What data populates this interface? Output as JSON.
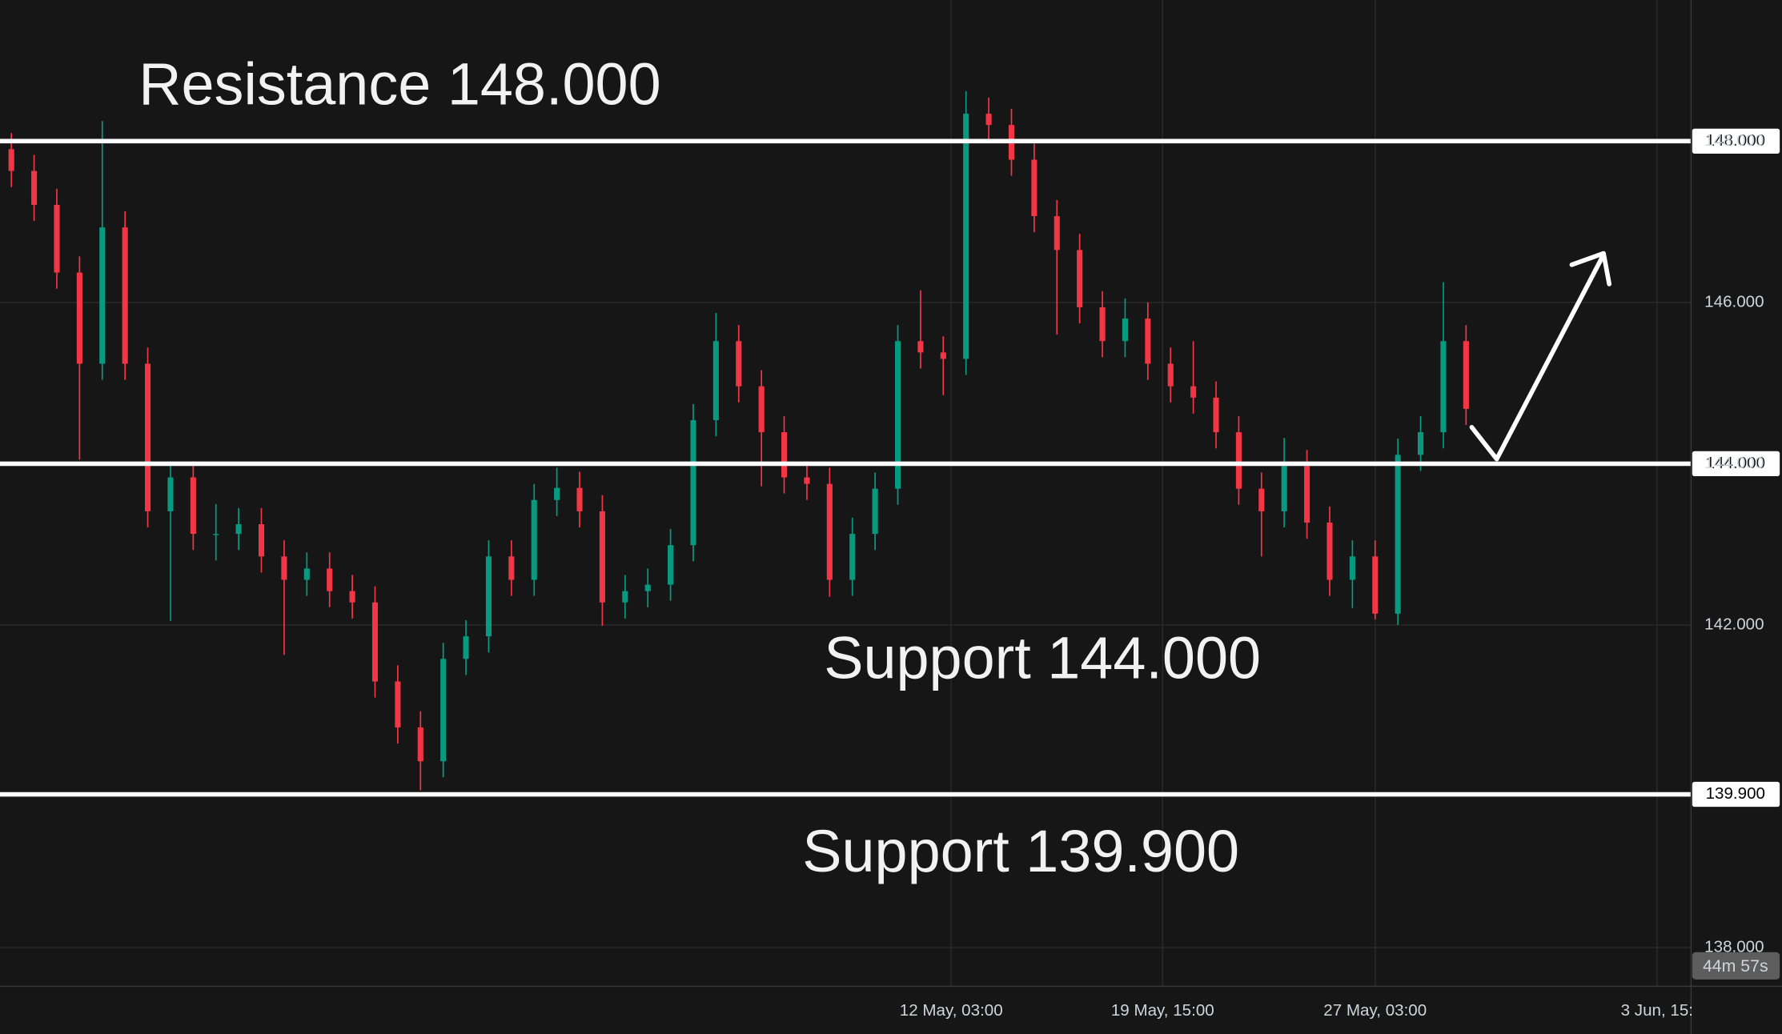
{
  "chart_data": {
    "type": "candlestick",
    "up_color": "#089981",
    "down_color": "#f23645",
    "grid": true,
    "xlim": [
      -0.5,
      73.9
    ],
    "xticks": [
      {
        "value": 41.35,
        "label": "12 May, 03:00"
      },
      {
        "value": 50.65,
        "label": "19 May, 15:00"
      },
      {
        "value": 60,
        "label": "27 May, 03:00"
      },
      {
        "value": 72.4,
        "label": "3 Jun, 15:"
      }
    ],
    "ylim": [
      137.52,
      149.75
    ],
    "yticks": [
      {
        "value": 138,
        "label": "138.000"
      },
      {
        "value": 142,
        "label": "142.000"
      },
      {
        "value": 144,
        "label": "144.000"
      },
      {
        "value": 146,
        "label": "146.000"
      },
      {
        "value": 148,
        "label": "148.000"
      }
    ],
    "series": [
      {
        "open": [
          147.9,
          147.63,
          147.21,
          146.37,
          145.24,
          146.93,
          145.24,
          143.41,
          143.83,
          143.13,
          143.13,
          143.25,
          142.85,
          142.56,
          142.7,
          142.42,
          142.28,
          141.3,
          140.73,
          140.31,
          141.58,
          141.86,
          142.85,
          142.56,
          143.55,
          143.7,
          143.41,
          142.28,
          142.42,
          142.5,
          142.99,
          144.54,
          145.52,
          144.96,
          144.39,
          143.83,
          143.75,
          142.56,
          143.13,
          143.69,
          145.52,
          145.38,
          145.3,
          148.34,
          148.2,
          147.77,
          147.07,
          146.65,
          145.94,
          145.52,
          145.8,
          145.24,
          144.96,
          144.82,
          144.39,
          143.69,
          143.41,
          143.97,
          143.27,
          142.56,
          142.85,
          142.14,
          144.11,
          144.39,
          145.52
        ],
        "high": [
          148.1,
          147.83,
          147.41,
          146.57,
          148.25,
          147.13,
          145.44,
          144.03,
          144.03,
          143.5,
          143.45,
          143.45,
          143.05,
          142.9,
          142.9,
          142.62,
          142.48,
          141.5,
          140.93,
          141.78,
          142.06,
          143.05,
          143.05,
          143.75,
          143.95,
          143.9,
          143.61,
          142.62,
          142.7,
          143.19,
          144.74,
          145.87,
          145.72,
          145.16,
          144.59,
          144.03,
          143.95,
          143.33,
          143.89,
          145.72,
          146.15,
          145.58,
          148.62,
          148.54,
          148.4,
          147.97,
          147.27,
          146.85,
          146.14,
          146.05,
          146.0,
          145.44,
          145.52,
          145.02,
          144.59,
          143.89,
          144.32,
          144.17,
          143.47,
          143.05,
          143.05,
          144.31,
          144.59,
          146.25,
          145.72
        ],
        "low": [
          147.43,
          147.01,
          146.17,
          144.05,
          145.04,
          145.04,
          143.21,
          142.05,
          142.93,
          142.8,
          142.93,
          142.65,
          141.63,
          142.36,
          142.22,
          142.08,
          141.1,
          140.53,
          139.95,
          140.11,
          141.38,
          141.66,
          142.36,
          142.36,
          143.35,
          143.21,
          141.99,
          142.08,
          142.22,
          142.3,
          142.79,
          144.34,
          144.76,
          143.72,
          143.63,
          143.55,
          142.35,
          142.36,
          142.93,
          143.49,
          145.18,
          144.85,
          145.1,
          148.0,
          147.57,
          146.87,
          145.6,
          145.74,
          145.32,
          145.32,
          145.04,
          144.76,
          144.62,
          144.19,
          143.49,
          142.85,
          143.21,
          143.07,
          142.36,
          142.21,
          142.07,
          142.0,
          143.91,
          144.19,
          144.48
        ],
        "close": [
          147.63,
          147.21,
          146.37,
          145.24,
          146.93,
          145.24,
          143.41,
          143.83,
          143.13,
          143.13,
          143.25,
          142.85,
          142.56,
          142.7,
          142.42,
          142.28,
          141.3,
          140.73,
          140.31,
          141.58,
          141.86,
          142.85,
          142.56,
          143.55,
          143.7,
          143.41,
          142.28,
          142.42,
          142.5,
          142.99,
          144.54,
          145.52,
          144.96,
          144.39,
          143.83,
          143.75,
          142.56,
          143.13,
          143.69,
          145.52,
          145.38,
          145.3,
          148.34,
          148.2,
          147.77,
          147.07,
          146.65,
          145.94,
          145.52,
          145.8,
          145.24,
          144.96,
          144.82,
          144.39,
          143.69,
          143.41,
          143.97,
          143.27,
          142.56,
          142.85,
          142.14,
          144.11,
          144.39,
          145.52,
          144.68
        ]
      }
    ],
    "levels": [
      {
        "value": 148,
        "label": "148.000"
      },
      {
        "value": 144,
        "label": "144.000"
      },
      {
        "value": 139.9,
        "label": "139.900"
      }
    ],
    "annotations": [
      "Resistance 148.000",
      "Support 144.000",
      "Support 139.900"
    ],
    "countdown": "44m 57s"
  }
}
